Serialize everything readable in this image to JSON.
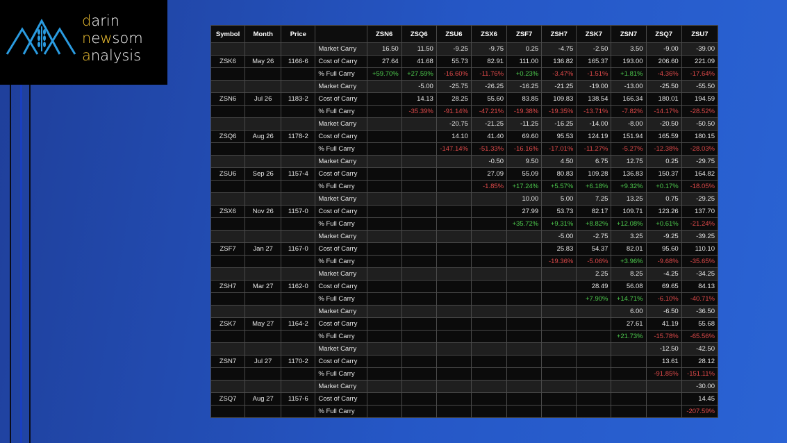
{
  "logo": {
    "line1_accent": "d",
    "line1_rest": "arin",
    "line2_accent": "n",
    "line2_mid": "e",
    "line2_accent2": "w",
    "line2_rest": "som",
    "line3_accent": "a",
    "line3_rest": "nalysis"
  },
  "table": {
    "headers": [
      "Symbol",
      "Month",
      "Price",
      "",
      "ZSN6",
      "ZSQ6",
      "ZSU6",
      "ZSX6",
      "ZSF7",
      "ZSH7",
      "ZSK7",
      "ZSN7",
      "ZSQ7",
      "ZSU7"
    ],
    "rows": [
      {
        "type": "market",
        "symbol": "",
        "month": "",
        "price": "",
        "label": "Market Carry",
        "values": [
          "16.50",
          "11.50",
          "-9.25",
          "-9.75",
          "0.25",
          "-4.75",
          "-2.50",
          "3.50",
          "-9.00",
          "-39.00"
        ]
      },
      {
        "type": "cost",
        "symbol": "ZSK6",
        "month": "May 26",
        "price": "1166-6",
        "label": "Cost of Carry",
        "values": [
          "27.64",
          "41.68",
          "55.73",
          "82.91",
          "111.00",
          "136.82",
          "165.37",
          "193.00",
          "206.60",
          "221.09"
        ]
      },
      {
        "type": "pct",
        "symbol": "",
        "month": "",
        "price": "",
        "label": "% Full Carry",
        "values": [
          "+59.70%",
          "+27.59%",
          "-16.60%",
          "-11.76%",
          "+0.23%",
          "-3.47%",
          "-1.51%",
          "+1.81%",
          "-4.36%",
          "-17.64%"
        ]
      },
      {
        "type": "market",
        "symbol": "",
        "month": "",
        "price": "",
        "label": "Market Carry",
        "values": [
          "",
          "-5.00",
          "-25.75",
          "-26.25",
          "-16.25",
          "-21.25",
          "-19.00",
          "-13.00",
          "-25.50",
          "-55.50"
        ]
      },
      {
        "type": "cost",
        "symbol": "ZSN6",
        "month": "Jul 26",
        "price": "1183-2",
        "label": "Cost of Carry",
        "values": [
          "",
          "14.13",
          "28.25",
          "55.60",
          "83.85",
          "109.83",
          "138.54",
          "166.34",
          "180.01",
          "194.59"
        ]
      },
      {
        "type": "pct",
        "symbol": "",
        "month": "",
        "price": "",
        "label": "% Full Carry",
        "values": [
          "",
          "-35.39%",
          "-91.14%",
          "-47.21%",
          "-19.38%",
          "-19.35%",
          "-13.71%",
          "-7.82%",
          "-14.17%",
          "-28.52%"
        ]
      },
      {
        "type": "market",
        "symbol": "",
        "month": "",
        "price": "",
        "label": "Market Carry",
        "values": [
          "",
          "",
          "-20.75",
          "-21.25",
          "-11.25",
          "-16.25",
          "-14.00",
          "-8.00",
          "-20.50",
          "-50.50"
        ]
      },
      {
        "type": "cost",
        "symbol": "ZSQ6",
        "month": "Aug 26",
        "price": "1178-2",
        "label": "Cost of Carry",
        "values": [
          "",
          "",
          "14.10",
          "41.40",
          "69.60",
          "95.53",
          "124.19",
          "151.94",
          "165.59",
          "180.15"
        ]
      },
      {
        "type": "pct",
        "symbol": "",
        "month": "",
        "price": "",
        "label": "% Full Carry",
        "values": [
          "",
          "",
          "-147.14%",
          "-51.33%",
          "-16.16%",
          "-17.01%",
          "-11.27%",
          "-5.27%",
          "-12.38%",
          "-28.03%"
        ]
      },
      {
        "type": "market",
        "symbol": "",
        "month": "",
        "price": "",
        "label": "Market Carry",
        "values": [
          "",
          "",
          "",
          "-0.50",
          "9.50",
          "4.50",
          "6.75",
          "12.75",
          "0.25",
          "-29.75"
        ]
      },
      {
        "type": "cost",
        "symbol": "ZSU6",
        "month": "Sep 26",
        "price": "1157-4",
        "label": "Cost of Carry",
        "values": [
          "",
          "",
          "",
          "27.09",
          "55.09",
          "80.83",
          "109.28",
          "136.83",
          "150.37",
          "164.82"
        ]
      },
      {
        "type": "pct",
        "symbol": "",
        "month": "",
        "price": "",
        "label": "% Full Carry",
        "values": [
          "",
          "",
          "",
          "-1.85%",
          "+17.24%",
          "+5.57%",
          "+6.18%",
          "+9.32%",
          "+0.17%",
          "-18.05%"
        ]
      },
      {
        "type": "market",
        "symbol": "",
        "month": "",
        "price": "",
        "label": "Market Carry",
        "values": [
          "",
          "",
          "",
          "",
          "10.00",
          "5.00",
          "7.25",
          "13.25",
          "0.75",
          "-29.25"
        ]
      },
      {
        "type": "cost",
        "symbol": "ZSX6",
        "month": "Nov 26",
        "price": "1157-0",
        "label": "Cost of Carry",
        "values": [
          "",
          "",
          "",
          "",
          "27.99",
          "53.73",
          "82.17",
          "109.71",
          "123.26",
          "137.70"
        ]
      },
      {
        "type": "pct",
        "symbol": "",
        "month": "",
        "price": "",
        "label": "% Full Carry",
        "values": [
          "",
          "",
          "",
          "",
          "+35.72%",
          "+9.31%",
          "+8.82%",
          "+12.08%",
          "+0.61%",
          "-21.24%"
        ]
      },
      {
        "type": "market",
        "symbol": "",
        "month": "",
        "price": "",
        "label": "Market Carry",
        "values": [
          "",
          "",
          "",
          "",
          "",
          "-5.00",
          "-2.75",
          "3.25",
          "-9.25",
          "-39.25"
        ]
      },
      {
        "type": "cost",
        "symbol": "ZSF7",
        "month": "Jan 27",
        "price": "1167-0",
        "label": "Cost of Carry",
        "values": [
          "",
          "",
          "",
          "",
          "",
          "25.83",
          "54.37",
          "82.01",
          "95.60",
          "110.10"
        ]
      },
      {
        "type": "pct",
        "symbol": "",
        "month": "",
        "price": "",
        "label": "% Full Carry",
        "values": [
          "",
          "",
          "",
          "",
          "",
          "-19.36%",
          "-5.06%",
          "+3.96%",
          "-9.68%",
          "-35.65%"
        ]
      },
      {
        "type": "market",
        "symbol": "",
        "month": "",
        "price": "",
        "label": "Market Carry",
        "values": [
          "",
          "",
          "",
          "",
          "",
          "",
          "2.25",
          "8.25",
          "-4.25",
          "-34.25"
        ]
      },
      {
        "type": "cost",
        "symbol": "ZSH7",
        "month": "Mar 27",
        "price": "1162-0",
        "label": "Cost of Carry",
        "values": [
          "",
          "",
          "",
          "",
          "",
          "",
          "28.49",
          "56.08",
          "69.65",
          "84.13"
        ]
      },
      {
        "type": "pct",
        "symbol": "",
        "month": "",
        "price": "",
        "label": "% Full Carry",
        "values": [
          "",
          "",
          "",
          "",
          "",
          "",
          "+7.90%",
          "+14.71%",
          "-6.10%",
          "-40.71%"
        ]
      },
      {
        "type": "market",
        "symbol": "",
        "month": "",
        "price": "",
        "label": "Market Carry",
        "values": [
          "",
          "",
          "",
          "",
          "",
          "",
          "",
          "6.00",
          "-6.50",
          "-36.50"
        ]
      },
      {
        "type": "cost",
        "symbol": "ZSK7",
        "month": "May 27",
        "price": "1164-2",
        "label": "Cost of Carry",
        "values": [
          "",
          "",
          "",
          "",
          "",
          "",
          "",
          "27.61",
          "41.19",
          "55.68"
        ]
      },
      {
        "type": "pct",
        "symbol": "",
        "month": "",
        "price": "",
        "label": "% Full Carry",
        "values": [
          "",
          "",
          "",
          "",
          "",
          "",
          "",
          "+21.73%",
          "-15.78%",
          "-65.56%"
        ]
      },
      {
        "type": "market",
        "symbol": "",
        "month": "",
        "price": "",
        "label": "Market Carry",
        "values": [
          "",
          "",
          "",
          "",
          "",
          "",
          "",
          "",
          "-12.50",
          "-42.50"
        ]
      },
      {
        "type": "cost",
        "symbol": "ZSN7",
        "month": "Jul 27",
        "price": "1170-2",
        "label": "Cost of Carry",
        "values": [
          "",
          "",
          "",
          "",
          "",
          "",
          "",
          "",
          "13.61",
          "28.12"
        ]
      },
      {
        "type": "pct",
        "symbol": "",
        "month": "",
        "price": "",
        "label": "% Full Carry",
        "values": [
          "",
          "",
          "",
          "",
          "",
          "",
          "",
          "",
          "-91.85%",
          "-151.11%"
        ]
      },
      {
        "type": "market",
        "symbol": "",
        "month": "",
        "price": "",
        "label": "Market Carry",
        "values": [
          "",
          "",
          "",
          "",
          "",
          "",
          "",
          "",
          "",
          "-30.00"
        ]
      },
      {
        "type": "cost",
        "symbol": "ZSQ7",
        "month": "Aug 27",
        "price": "1157-6",
        "label": "Cost of Carry",
        "values": [
          "",
          "",
          "",
          "",
          "",
          "",
          "",
          "",
          "",
          "14.45"
        ]
      },
      {
        "type": "pct",
        "symbol": "",
        "month": "",
        "price": "",
        "label": "% Full Carry",
        "values": [
          "",
          "",
          "",
          "",
          "",
          "",
          "",
          "",
          "",
          "-207.59%"
        ]
      }
    ]
  },
  "colors": {
    "positive": "#4dc94d",
    "negative": "#e04a4a",
    "accent": "#f1c232"
  }
}
